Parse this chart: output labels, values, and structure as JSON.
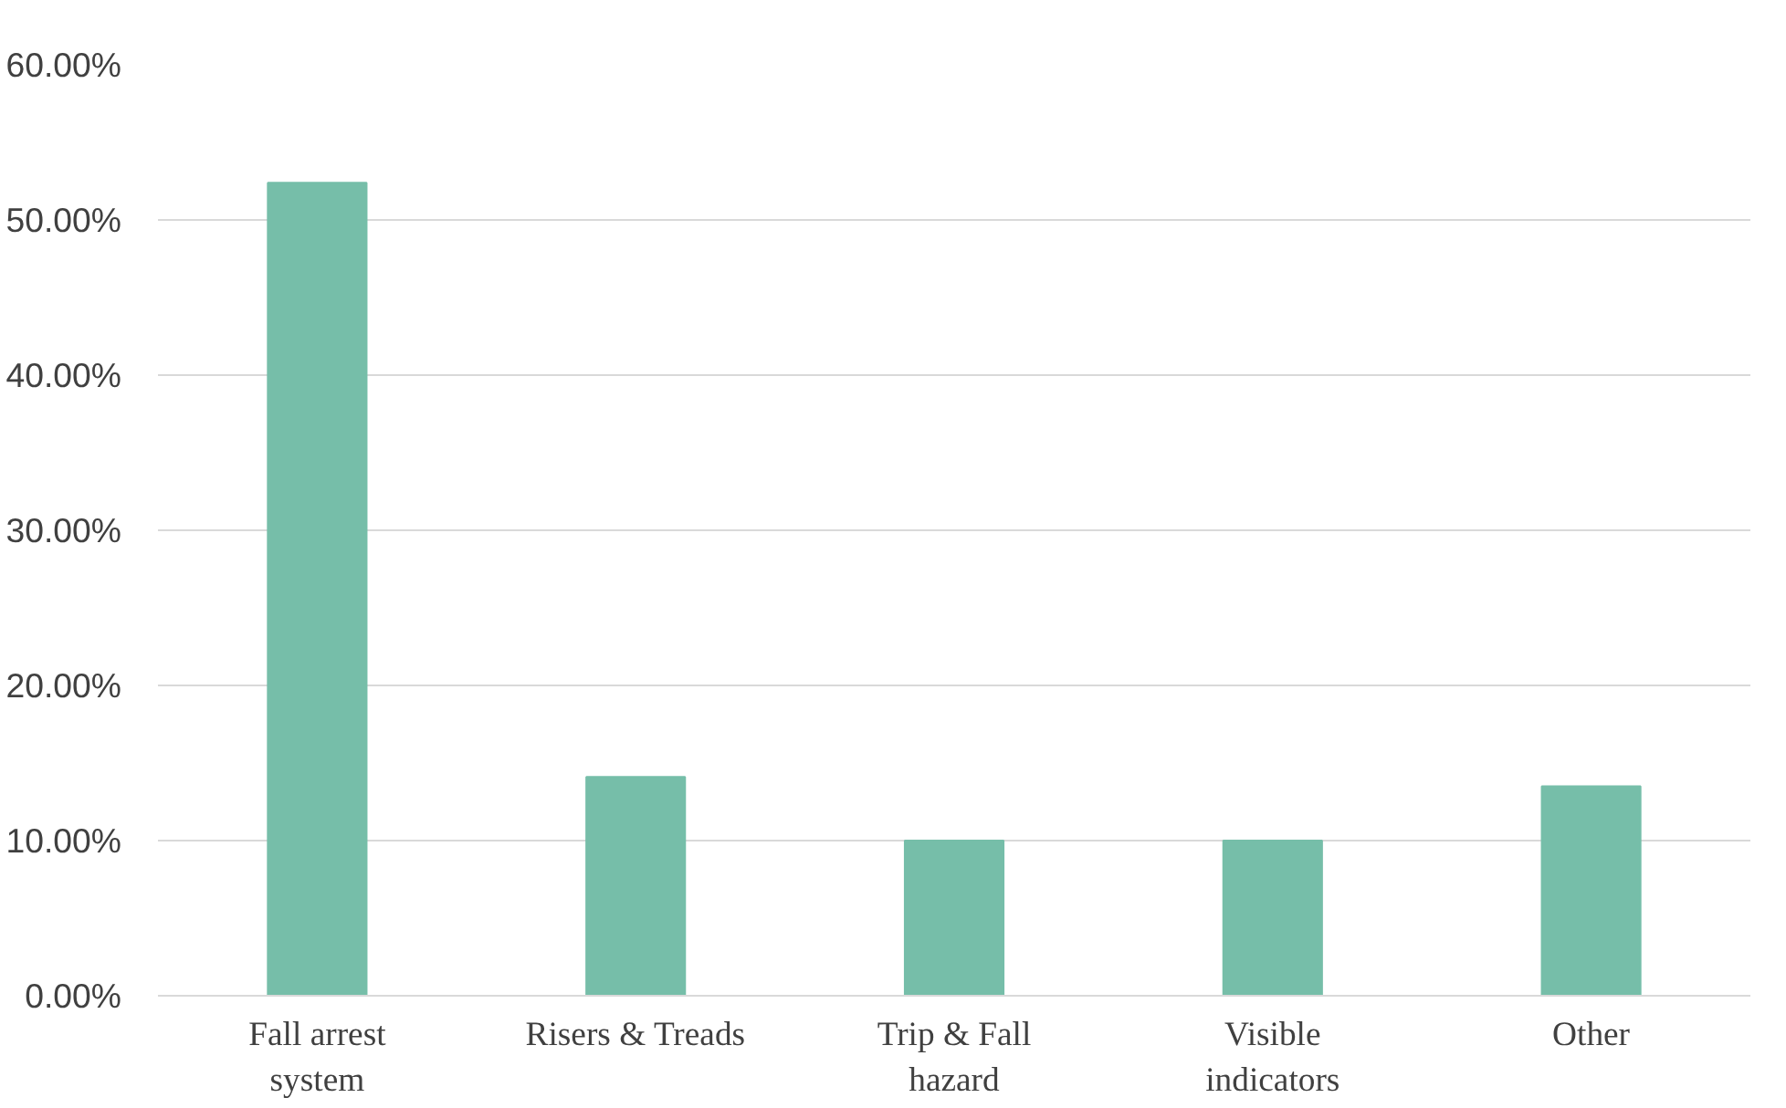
{
  "chart_data": {
    "type": "bar",
    "categories": [
      "Fall arrest\nsystem",
      "Risers & Treads",
      "Trip & Fall\nhazard",
      "Visible\nindicators",
      "Other"
    ],
    "values": [
      52.4,
      14.1,
      10.0,
      10.0,
      13.5
    ],
    "color": "#76bea9",
    "ylim": [
      0,
      60
    ],
    "yticks": [
      {
        "value": 0,
        "label": "0.00%"
      },
      {
        "value": 10,
        "label": "10.00%"
      },
      {
        "value": 20,
        "label": "20.00%"
      },
      {
        "value": 30,
        "label": "30.00%"
      },
      {
        "value": 40,
        "label": "40.00%"
      },
      {
        "value": 50,
        "label": "50.00%"
      },
      {
        "value": 60,
        "label": "60.00%"
      }
    ],
    "grid": "y"
  }
}
